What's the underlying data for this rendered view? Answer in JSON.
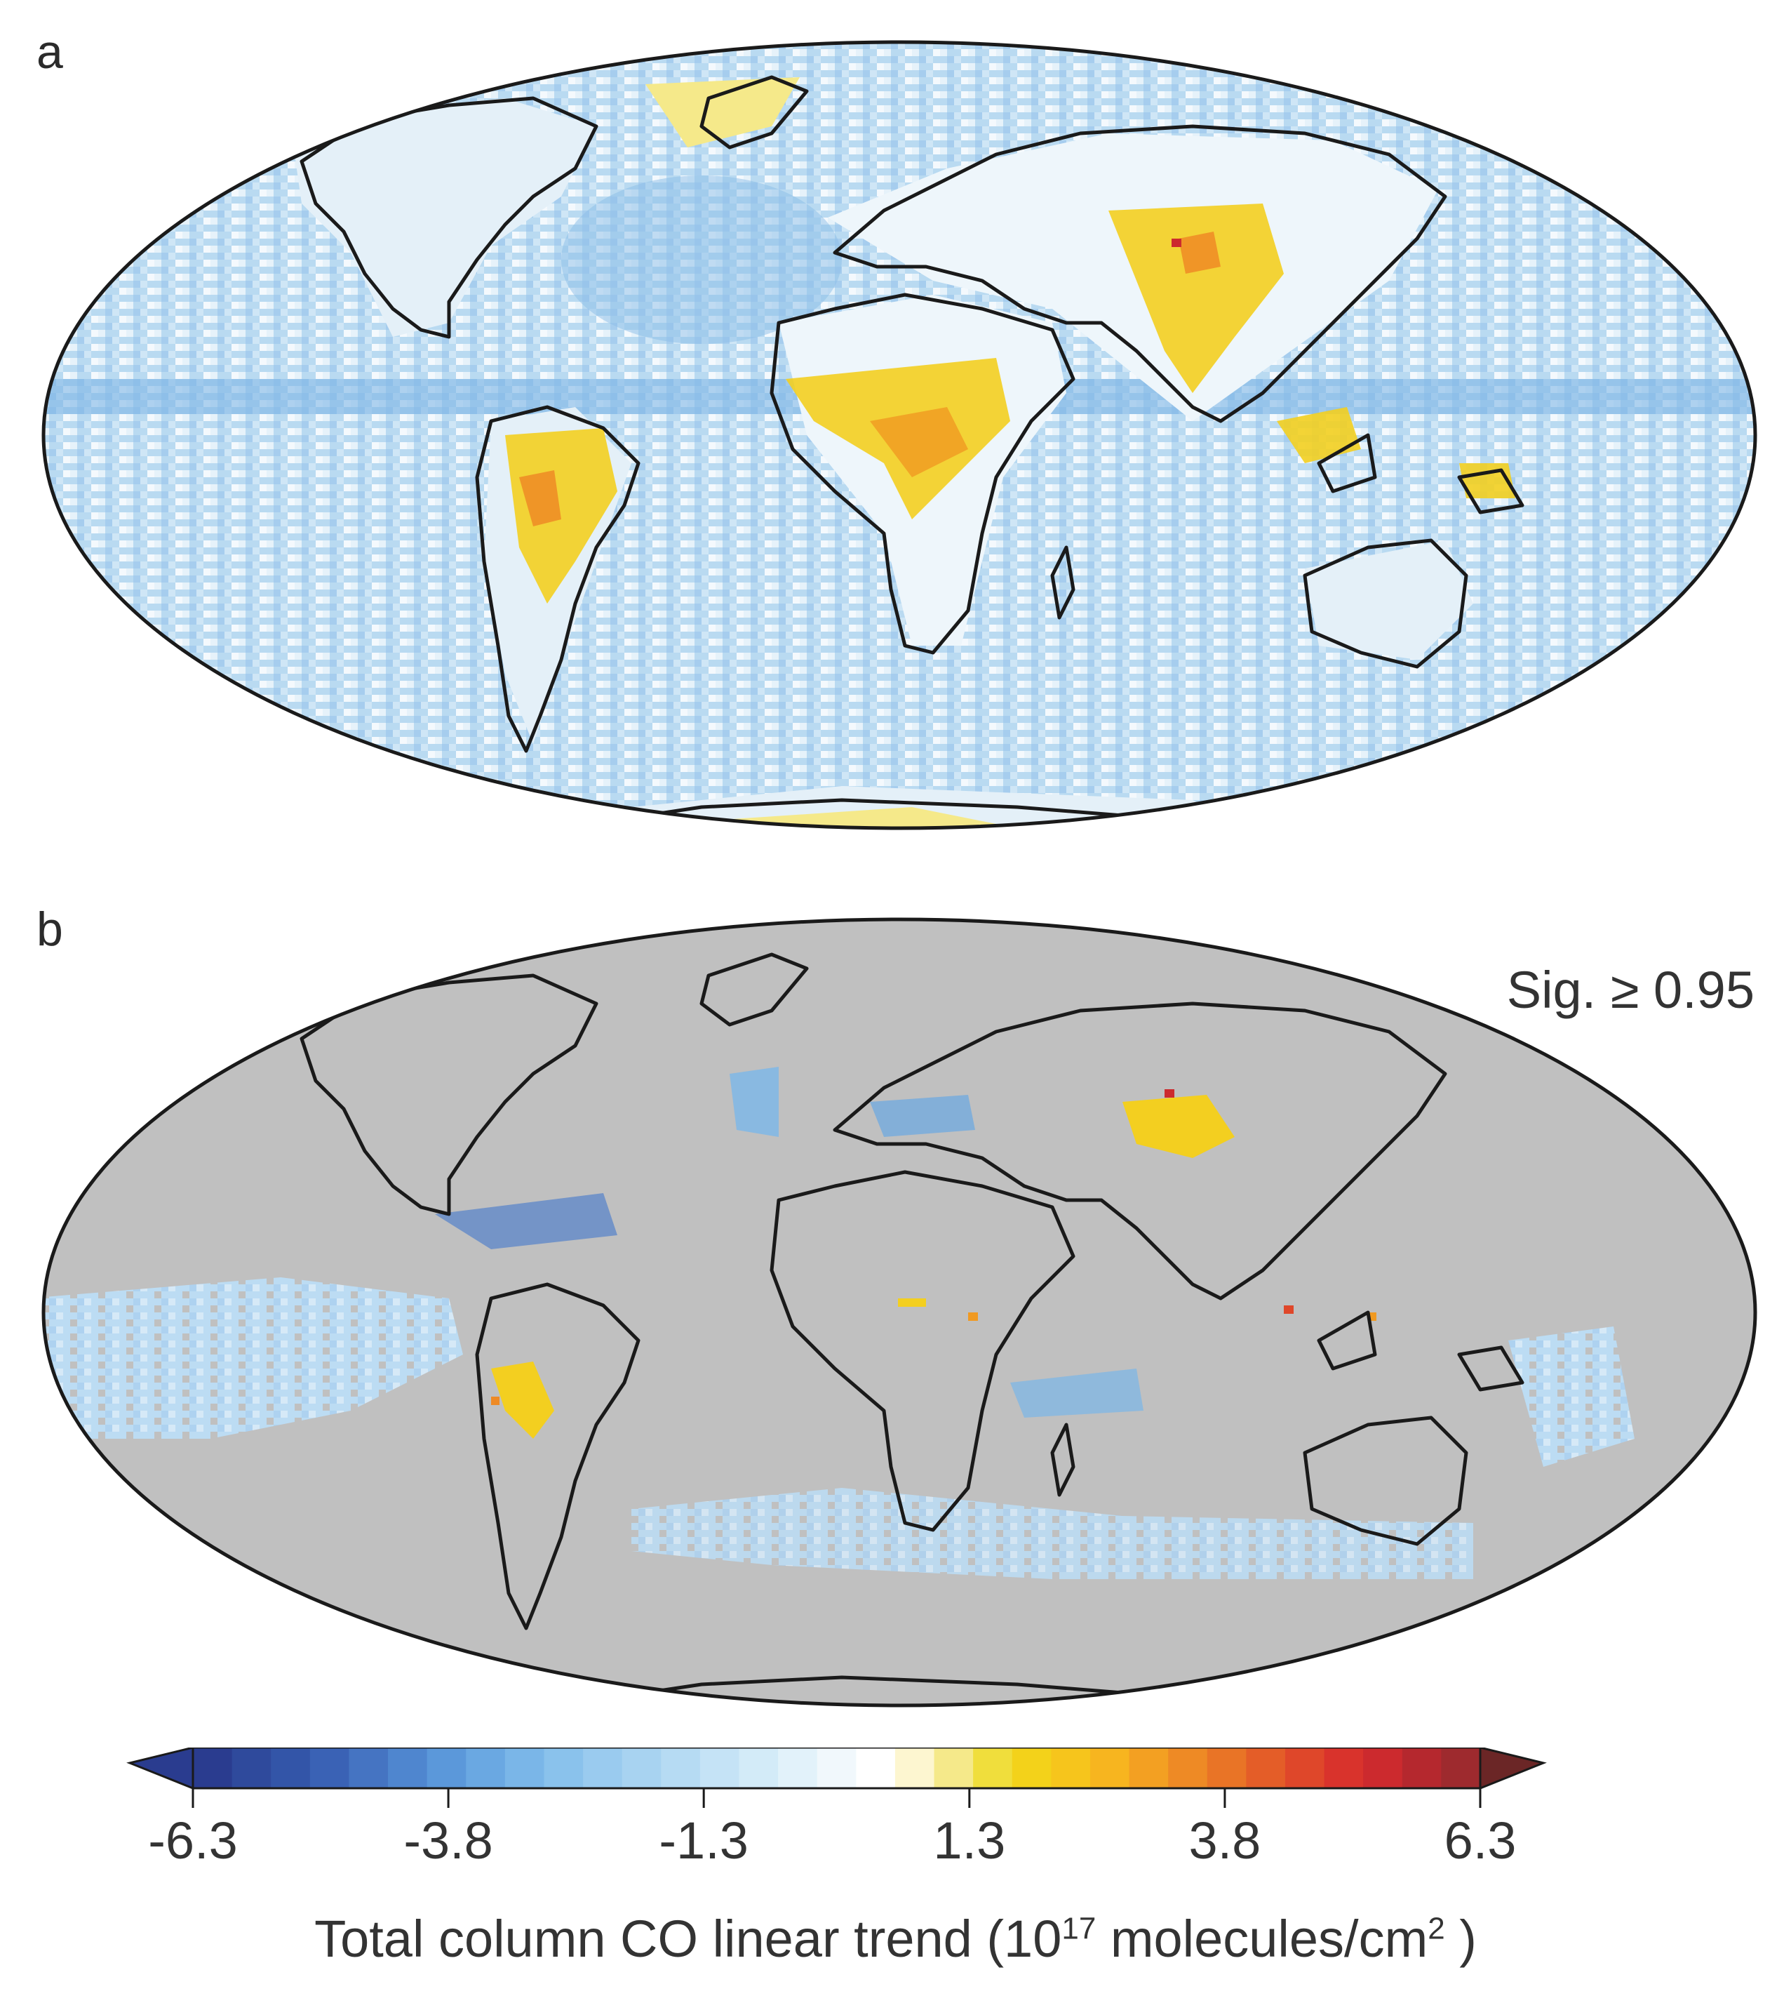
{
  "panels": [
    {
      "label": "a",
      "note": ""
    },
    {
      "label": "b",
      "note": "Sig. ≥ 0.95"
    }
  ],
  "colorbar": {
    "tick_labels": [
      "-6.3",
      "-3.8",
      "-1.3",
      "1.3",
      "3.8",
      "6.3"
    ],
    "title_pre": "Total column CO linear trend (10",
    "title_exp": "17",
    "title_mid": " molecules/cm",
    "title_exp2": "2",
    "title_post": " )",
    "range": [
      -6.3,
      6.3
    ],
    "extend": "both",
    "colors": [
      "#2a3c8f",
      "#2f4a9c",
      "#3355a8",
      "#3a62b5",
      "#4574c2",
      "#4f86cf",
      "#5b98da",
      "#6aa8e2",
      "#7ab6e8",
      "#8ac2ec",
      "#9acbef",
      "#a8d3f1",
      "#b6dbf3",
      "#c5e3f6",
      "#d3ebf8",
      "#e2f2fa",
      "#f1f8fc",
      "#ffffff",
      "#fdf6d0",
      "#f5e98a",
      "#f0de3c",
      "#f3d21a",
      "#f6c51c",
      "#f7b51f",
      "#f3a022",
      "#ee8a25",
      "#e97426",
      "#e45d28",
      "#df472a",
      "#d9332c",
      "#cc2a2e",
      "#b5282e",
      "#9e2a2e"
    ]
  }
}
